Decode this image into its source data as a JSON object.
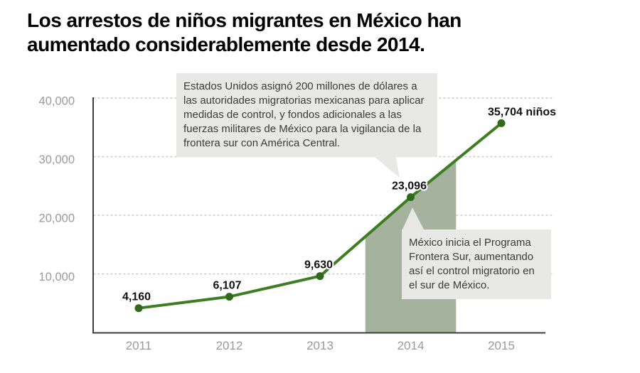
{
  "title": "Los arrestos de niños migrantes en México han aumentado considerablemente desde 2014.",
  "annotations": {
    "us_funding": "Estados Unidos asignó 200 millones de dólares a las autoridades migratorias mexicanas para aplicar medidas de control, y fondos adicionales a las fuerzas militares de México para la vigilancia de la frontera sur con América Central.",
    "frontera_sur": "México inicia el Programa Frontera Sur, aumentando así el control migratorio en el sur de México."
  },
  "chart_data": {
    "type": "line",
    "x": [
      2011,
      2012,
      2013,
      2014,
      2015
    ],
    "values": [
      4160,
      6107,
      9630,
      23096,
      35704
    ],
    "point_labels": [
      "4,160",
      "6,107",
      "9,630",
      "23,096",
      "35,704 niños"
    ],
    "x_ticks": [
      "2011",
      "2012",
      "2013",
      "2014",
      "2015"
    ],
    "y_ticks": [
      {
        "value": 10000,
        "label": "10,000"
      },
      {
        "value": 20000,
        "label": "20,000"
      },
      {
        "value": 30000,
        "label": "30,000"
      },
      {
        "value": 40000,
        "label": "40,000"
      }
    ],
    "ylim": [
      0,
      40000
    ],
    "grid": "dotted-horizontal",
    "highlight_band_x": [
      2013.5,
      2014.5
    ],
    "legend": "none",
    "colors": {
      "line": "#3e7d22",
      "marker": "#2f691c",
      "band": "#a5b29d",
      "annotation_bg": "#e8e8e6",
      "axis_text": "#9a9a9a",
      "grid": "#c9c9c9",
      "axis_line": "#3f3f3f",
      "data_label": "#111111"
    }
  }
}
